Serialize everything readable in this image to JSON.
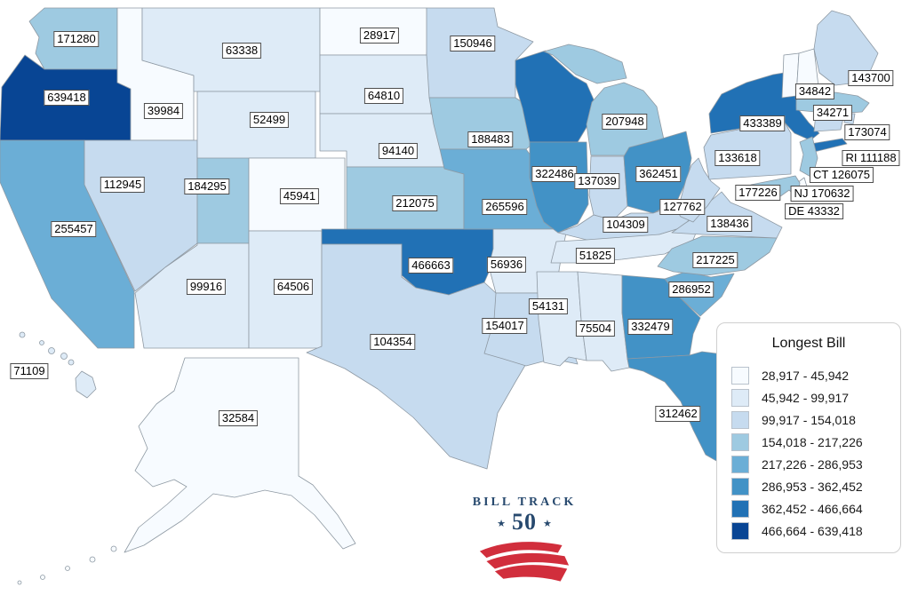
{
  "branding": {
    "line1": "BILL TRACK",
    "number": "50",
    "navy": "#27496e",
    "red": "#d12e3c"
  },
  "chart_data": {
    "type": "choropleth",
    "region": "United States",
    "title": "Longest Bill",
    "palette": [
      "#f7fbff",
      "#deebf7",
      "#c6dbef",
      "#9ecae1",
      "#6baed6",
      "#4292c6",
      "#2171b5",
      "#084594"
    ],
    "legend": {
      "title": "Longest Bill",
      "position": "bottom-right",
      "classes": [
        {
          "range": "28,917 - 45,942",
          "color": "#f7fbff"
        },
        {
          "range": "45,942 - 99,917",
          "color": "#deebf7"
        },
        {
          "range": "99,917 - 154,018",
          "color": "#c6dbef"
        },
        {
          "range": "154,018 - 217,226",
          "color": "#9ecae1"
        },
        {
          "range": "217,226 - 286,953",
          "color": "#6baed6"
        },
        {
          "range": "286,953 - 362,452",
          "color": "#4292c6"
        },
        {
          "range": "362,452 - 466,664",
          "color": "#2171b5"
        },
        {
          "range": "466,664 - 639,418",
          "color": "#084594"
        }
      ]
    },
    "states": [
      {
        "abbr": "WA",
        "name": "Washington",
        "value": 171280,
        "label": "171280",
        "class": 4
      },
      {
        "abbr": "OR",
        "name": "Oregon",
        "value": 639418,
        "label": "639418",
        "class": 8
      },
      {
        "abbr": "CA",
        "name": "California",
        "value": 255457,
        "label": "255457",
        "class": 5
      },
      {
        "abbr": "ID",
        "name": "Idaho",
        "value": 39984,
        "label": "39984",
        "class": 1
      },
      {
        "abbr": "NV",
        "name": "Nevada",
        "value": 112945,
        "label": "112945",
        "class": 3
      },
      {
        "abbr": "UT",
        "name": "Utah",
        "value": 184295,
        "label": "184295",
        "class": 4
      },
      {
        "abbr": "AZ",
        "name": "Arizona",
        "value": 99916,
        "label": "99916",
        "class": 2
      },
      {
        "abbr": "MT",
        "name": "Montana",
        "value": 63338,
        "label": "63338",
        "class": 2
      },
      {
        "abbr": "WY",
        "name": "Wyoming",
        "value": 52499,
        "label": "52499",
        "class": 2
      },
      {
        "abbr": "CO",
        "name": "Colorado",
        "value": 45941,
        "label": "45941",
        "class": 1
      },
      {
        "abbr": "NM",
        "name": "New Mexico",
        "value": 64506,
        "label": "64506",
        "class": 2
      },
      {
        "abbr": "ND",
        "name": "North Dakota",
        "value": 28917,
        "label": "28917",
        "class": 1
      },
      {
        "abbr": "SD",
        "name": "South Dakota",
        "value": 64810,
        "label": "64810",
        "class": 2
      },
      {
        "abbr": "NE",
        "name": "Nebraska",
        "value": 94140,
        "label": "94140",
        "class": 2
      },
      {
        "abbr": "KS",
        "name": "Kansas",
        "value": 212075,
        "label": "212075",
        "class": 4
      },
      {
        "abbr": "OK",
        "name": "Oklahoma",
        "value": 466663,
        "label": "466663",
        "class": 7
      },
      {
        "abbr": "TX",
        "name": "Texas",
        "value": 104354,
        "label": "104354",
        "class": 3
      },
      {
        "abbr": "MN",
        "name": "Minnesota",
        "value": 150946,
        "label": "150946",
        "class": 3
      },
      {
        "abbr": "IA",
        "name": "Iowa",
        "value": 188483,
        "label": "188483",
        "class": 4
      },
      {
        "abbr": "MO",
        "name": "Missouri",
        "value": 265596,
        "label": "265596",
        "class": 5
      },
      {
        "abbr": "AR",
        "name": "Arkansas",
        "value": 56936,
        "label": "56936",
        "class": 2
      },
      {
        "abbr": "LA",
        "name": "Louisiana",
        "value": 154017,
        "label": "154017",
        "class": 3
      },
      {
        "abbr": "WI",
        "name": "Wisconsin",
        "value": null,
        "label": null,
        "class": 7
      },
      {
        "abbr": "IL",
        "name": "Illinois",
        "value": 322486,
        "label": "322486",
        "class": 6
      },
      {
        "abbr": "IN",
        "name": "Indiana",
        "value": 137039,
        "label": "137039",
        "class": 3
      },
      {
        "abbr": "MI",
        "name": "Michigan",
        "value": 207948,
        "label": "207948",
        "class": 4
      },
      {
        "abbr": "OH",
        "name": "Ohio",
        "value": 362451,
        "label": "362451",
        "class": 6
      },
      {
        "abbr": "KY",
        "name": "Kentucky",
        "value": 104309,
        "label": "104309",
        "class": 3
      },
      {
        "abbr": "TN",
        "name": "Tennessee",
        "value": 51825,
        "label": "51825",
        "class": 2
      },
      {
        "abbr": "MS",
        "name": "Mississippi",
        "value": 54131,
        "label": "54131",
        "class": 2
      },
      {
        "abbr": "AL",
        "name": "Alabama",
        "value": 75504,
        "label": "75504",
        "class": 2
      },
      {
        "abbr": "GA",
        "name": "Georgia",
        "value": 332479,
        "label": "332479",
        "class": 6
      },
      {
        "abbr": "FL",
        "name": "Florida",
        "value": 312462,
        "label": "312462",
        "class": 6
      },
      {
        "abbr": "SC",
        "name": "South Carolina",
        "value": 286952,
        "label": "286952",
        "class": 5
      },
      {
        "abbr": "NC",
        "name": "North Carolina",
        "value": 217225,
        "label": "217225",
        "class": 4
      },
      {
        "abbr": "VA",
        "name": "Virginia",
        "value": 138436,
        "label": "138436",
        "class": 3
      },
      {
        "abbr": "WV",
        "name": "West Virginia",
        "value": 127762,
        "label": "127762",
        "class": 3
      },
      {
        "abbr": "PA",
        "name": "Pennsylvania",
        "value": 133618,
        "label": "133618",
        "class": 3
      },
      {
        "abbr": "NY",
        "name": "New York",
        "value": 433389,
        "label": "433389",
        "class": 7
      },
      {
        "abbr": "VT",
        "name": "Vermont",
        "value": 34842,
        "label": "34842",
        "class": 1
      },
      {
        "abbr": "NH",
        "name": "New Hampshire",
        "value": 34271,
        "label": "34271",
        "class": 1
      },
      {
        "abbr": "ME",
        "name": "Maine",
        "value": 143700,
        "label": "143700",
        "class": 3
      },
      {
        "abbr": "MA",
        "name": "Massachusetts",
        "value": 173074,
        "label": "173074",
        "class": 4
      },
      {
        "abbr": "RI",
        "name": "Rhode Island",
        "value": 111188,
        "label": "RI 111188",
        "class": 3
      },
      {
        "abbr": "CT",
        "name": "Connecticut",
        "value": 126075,
        "label": "CT 126075",
        "class": 3
      },
      {
        "abbr": "NJ",
        "name": "New Jersey",
        "value": 170632,
        "label": "NJ 170632",
        "class": 4
      },
      {
        "abbr": "DE",
        "name": "Delaware",
        "value": 43332,
        "label": "DE 43332",
        "class": 1
      },
      {
        "abbr": "MD",
        "name": "Maryland",
        "value": 177226,
        "label": "177226",
        "class": 4
      },
      {
        "abbr": "AK",
        "name": "Alaska",
        "value": 32584,
        "label": "32584",
        "class": 1
      },
      {
        "abbr": "HI",
        "name": "Hawaii",
        "value": 71109,
        "label": "71109",
        "class": 2
      }
    ]
  }
}
